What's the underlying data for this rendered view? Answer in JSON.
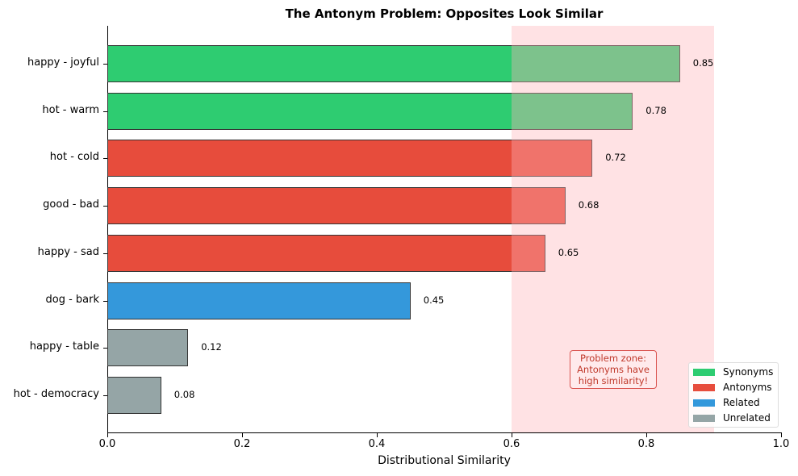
{
  "chart_data": {
    "type": "bar",
    "orientation": "horizontal",
    "title": "The Antonym Problem: Opposites Look Similar",
    "xlabel": "Distributional Similarity",
    "ylabel": "",
    "xlim": [
      0.0,
      1.0
    ],
    "xticks": [
      "0.0",
      "0.2",
      "0.4",
      "0.6",
      "0.8",
      "1.0"
    ],
    "categories": [
      "happy - joyful",
      "hot - warm",
      "hot - cold",
      "good - bad",
      "happy - sad",
      "dog - bark",
      "happy - table",
      "hot - democracy"
    ],
    "values": [
      0.85,
      0.78,
      0.72,
      0.68,
      0.65,
      0.45,
      0.12,
      0.08
    ],
    "value_labels": [
      "0.85",
      "0.78",
      "0.72",
      "0.68",
      "0.65",
      "0.45",
      "0.12",
      "0.08"
    ],
    "groups": [
      "Synonyms",
      "Synonyms",
      "Antonyms",
      "Antonyms",
      "Antonyms",
      "Related",
      "Unrelated",
      "Unrelated"
    ],
    "legend": [
      {
        "label": "Synonyms",
        "color": "#2ecc71"
      },
      {
        "label": "Antonyms",
        "color": "#e74c3c"
      },
      {
        "label": "Related",
        "color": "#3498db"
      },
      {
        "label": "Unrelated",
        "color": "#95a5a6"
      }
    ],
    "legend_position": "lower right",
    "highlight_span": {
      "x0": 0.6,
      "x1": 0.9,
      "color": "#ffcccc"
    },
    "annotation": {
      "text": "Problem zone:\nAntonyms have\nhigh similarity!",
      "color": "#c0392b"
    },
    "grid": false
  },
  "annotation_lines": [
    "Problem zone:",
    "Antonyms have",
    "high similarity!"
  ]
}
